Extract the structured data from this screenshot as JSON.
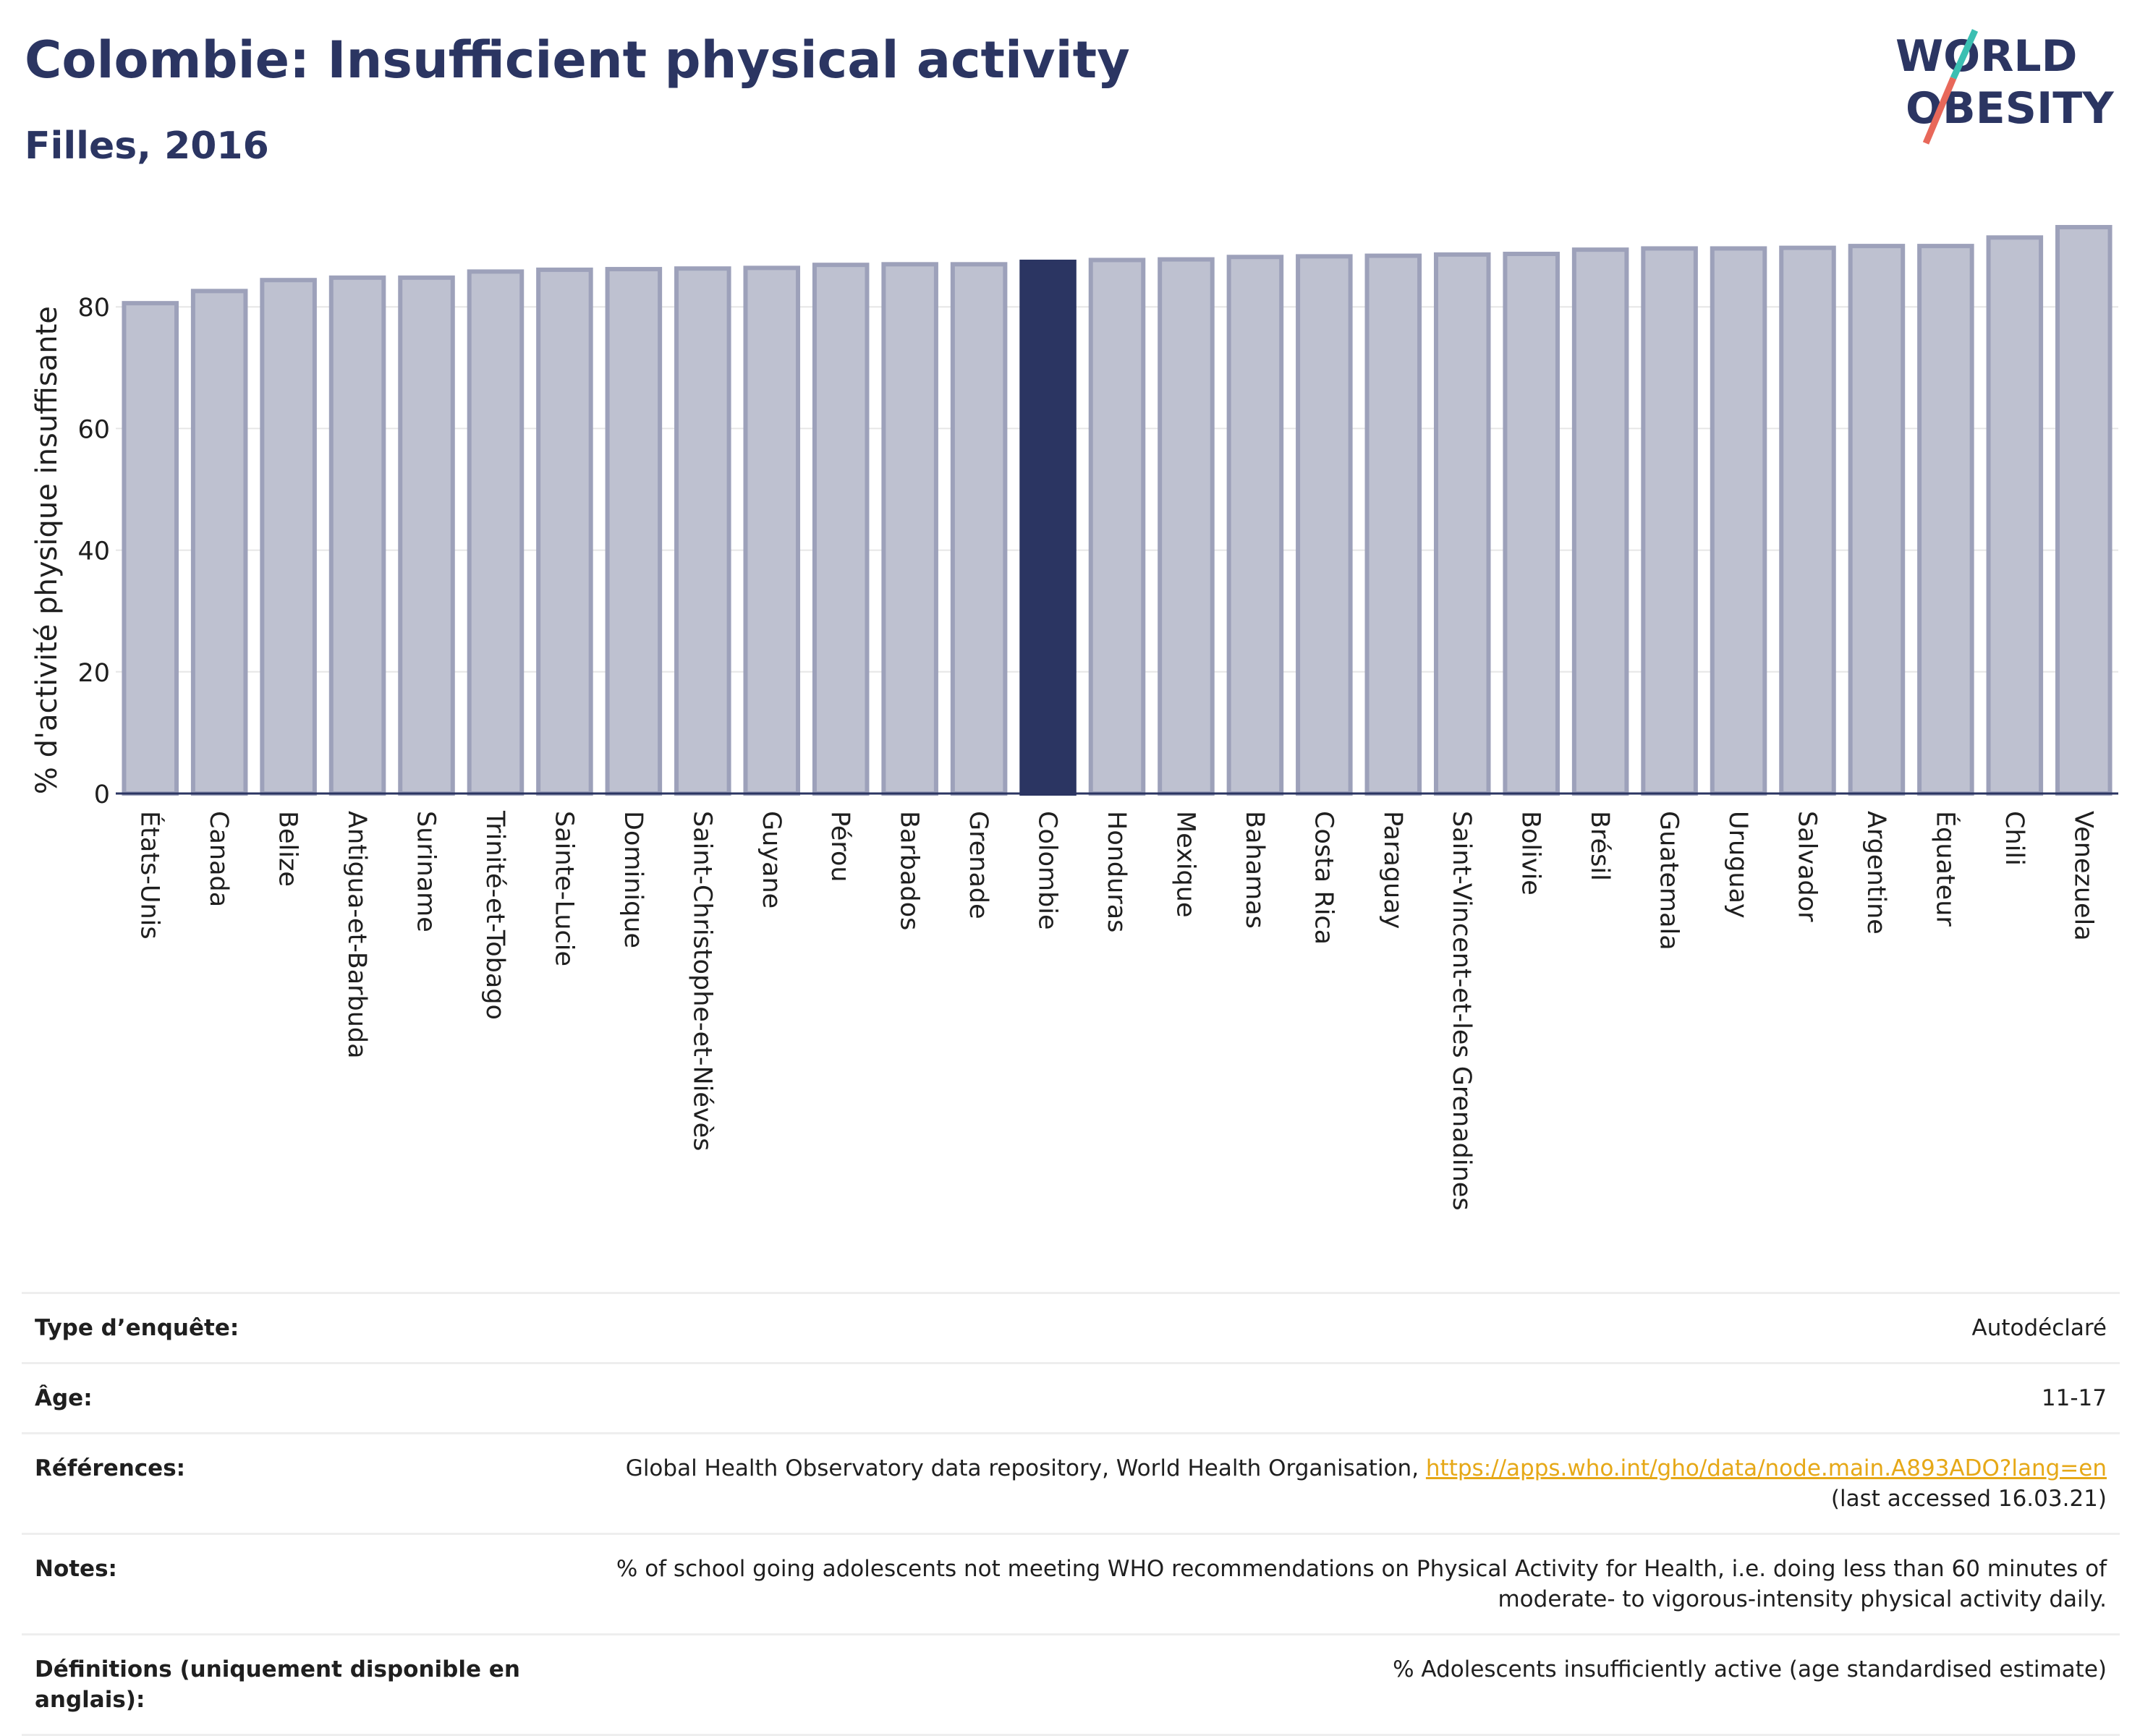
{
  "header": {
    "title": "Colombie: Insufficient physical activity",
    "subtitle": "Filles, 2016"
  },
  "logo": {
    "line1": "WORLD",
    "line2": "OBESITY",
    "colors": {
      "text": "#2b3562",
      "slash_teal": "#3bbfb2",
      "slash_red": "#e8685a"
    }
  },
  "colors": {
    "bar": "#bec1d0",
    "bar_stroke": "#9da1ba",
    "highlight": "#2b3562",
    "grid": "#e6e6e6",
    "axis": "#2b3562"
  },
  "chart_data": {
    "type": "bar",
    "ylabel": "% d'activité physique insuffisante",
    "ylim": [
      0,
      95
    ],
    "yticks": [
      0,
      20,
      40,
      60,
      80
    ],
    "grid": true,
    "highlight": "Colombie",
    "categories": [
      "États-Unis",
      "Canada",
      "Belize",
      "Antigua-et-Barbuda",
      "Suriname",
      "Trinité-et-Tobago",
      "Sainte-Lucie",
      "Dominique",
      "Saint-Christophe-et-Niévès",
      "Guyane",
      "Pérou",
      "Barbados",
      "Grenade",
      "Colombie",
      "Honduras",
      "Mexique",
      "Bahamas",
      "Costa Rica",
      "Paraguay",
      "Saint-Vincent-et-les Grenadines",
      "Bolivie",
      "Brésil",
      "Guatemala",
      "Uruguay",
      "Salvador",
      "Argentine",
      "Équateur",
      "Chili",
      "Venezuela"
    ],
    "values": [
      80.6,
      82.6,
      84.4,
      84.8,
      84.8,
      85.8,
      86.1,
      86.2,
      86.3,
      86.4,
      86.9,
      87.0,
      87.0,
      87.4,
      87.7,
      87.8,
      88.2,
      88.3,
      88.4,
      88.6,
      88.7,
      89.4,
      89.6,
      89.6,
      89.7,
      90.0,
      90.0,
      91.4,
      93.1
    ]
  },
  "meta": [
    {
      "label": "Type d’enquête:",
      "value": "Autodéclaré"
    },
    {
      "label": "Âge:",
      "value": "11-17"
    },
    {
      "label": "Références:",
      "value": "Global Health Observatory data repository, World Health Organisation,",
      "link": "https://apps.who.int/gho/data/node.main.A893ADO?lang=en",
      "value2": "(last accessed 16.03.21)"
    },
    {
      "label": "Notes:",
      "value": "% of school going adolescents not meeting WHO recommendations on Physical Activity for Health, i.e. doing less than 60 minutes of",
      "value2": "moderate- to vigorous-intensity physical activity daily."
    },
    {
      "label": "Définitions (uniquement disponible en",
      "label2": "anglais):",
      "value": "% Adolescents insufficiently active (age standardised estimate)"
    }
  ]
}
